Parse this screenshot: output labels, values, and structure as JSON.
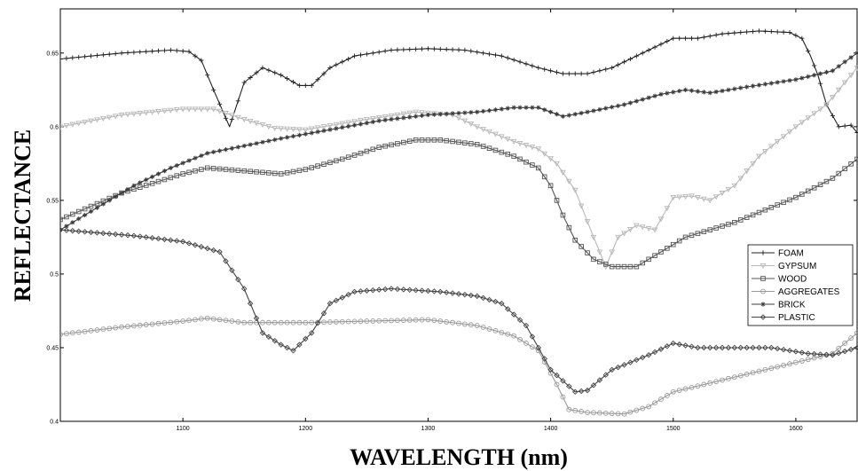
{
  "chart_data": {
    "type": "line",
    "xlabel": "WAVELENGTH (nm)",
    "ylabel": "REFLECTANCE",
    "xlim": [
      1000,
      1650
    ],
    "ylim": [
      0.4,
      0.68
    ],
    "xticks": [
      1100,
      1200,
      1300,
      1400,
      1500,
      1600
    ],
    "yticks": [
      0.4,
      0.45,
      0.5,
      0.55,
      0.6,
      0.65
    ],
    "ytick_labels": [
      "0.4",
      "0.45",
      "0.5",
      "0.55",
      "0.6",
      "0.65"
    ],
    "grid": false,
    "legend": "right",
    "series": [
      {
        "name": "FOAM",
        "color": "#222222",
        "marker": "plus",
        "points": [
          [
            1000,
            0.646
          ],
          [
            1050,
            0.65
          ],
          [
            1090,
            0.652
          ],
          [
            1105,
            0.651
          ],
          [
            1115,
            0.645
          ],
          [
            1125,
            0.625
          ],
          [
            1138,
            0.6
          ],
          [
            1150,
            0.63
          ],
          [
            1165,
            0.64
          ],
          [
            1180,
            0.635
          ],
          [
            1195,
            0.628
          ],
          [
            1205,
            0.628
          ],
          [
            1220,
            0.64
          ],
          [
            1240,
            0.648
          ],
          [
            1270,
            0.652
          ],
          [
            1300,
            0.653
          ],
          [
            1330,
            0.652
          ],
          [
            1360,
            0.648
          ],
          [
            1390,
            0.64
          ],
          [
            1410,
            0.636
          ],
          [
            1430,
            0.636
          ],
          [
            1450,
            0.64
          ],
          [
            1480,
            0.652
          ],
          [
            1500,
            0.66
          ],
          [
            1520,
            0.66
          ],
          [
            1540,
            0.663
          ],
          [
            1570,
            0.665
          ],
          [
            1595,
            0.664
          ],
          [
            1605,
            0.66
          ],
          [
            1612,
            0.648
          ],
          [
            1618,
            0.635
          ],
          [
            1625,
            0.615
          ],
          [
            1635,
            0.6
          ],
          [
            1645,
            0.601
          ],
          [
            1650,
            0.596
          ]
        ]
      },
      {
        "name": "GYPSUM",
        "color": "#b8b8b8",
        "marker": "triangle",
        "points": [
          [
            1000,
            0.6
          ],
          [
            1050,
            0.608
          ],
          [
            1100,
            0.612
          ],
          [
            1125,
            0.612
          ],
          [
            1150,
            0.605
          ],
          [
            1175,
            0.599
          ],
          [
            1200,
            0.598
          ],
          [
            1250,
            0.605
          ],
          [
            1290,
            0.61
          ],
          [
            1320,
            0.608
          ],
          [
            1340,
            0.6
          ],
          [
            1370,
            0.59
          ],
          [
            1390,
            0.585
          ],
          [
            1405,
            0.575
          ],
          [
            1420,
            0.557
          ],
          [
            1435,
            0.525
          ],
          [
            1445,
            0.505
          ],
          [
            1455,
            0.525
          ],
          [
            1470,
            0.533
          ],
          [
            1485,
            0.53
          ],
          [
            1500,
            0.552
          ],
          [
            1515,
            0.553
          ],
          [
            1530,
            0.55
          ],
          [
            1550,
            0.56
          ],
          [
            1570,
            0.58
          ],
          [
            1600,
            0.6
          ],
          [
            1625,
            0.615
          ],
          [
            1650,
            0.64
          ]
        ]
      },
      {
        "name": "WOOD",
        "color": "#555555",
        "marker": "square",
        "points": [
          [
            1000,
            0.537
          ],
          [
            1050,
            0.555
          ],
          [
            1100,
            0.568
          ],
          [
            1120,
            0.572
          ],
          [
            1150,
            0.57
          ],
          [
            1180,
            0.568
          ],
          [
            1200,
            0.571
          ],
          [
            1230,
            0.578
          ],
          [
            1260,
            0.586
          ],
          [
            1290,
            0.591
          ],
          [
            1310,
            0.591
          ],
          [
            1340,
            0.588
          ],
          [
            1370,
            0.58
          ],
          [
            1390,
            0.572
          ],
          [
            1400,
            0.56
          ],
          [
            1410,
            0.54
          ],
          [
            1420,
            0.523
          ],
          [
            1435,
            0.51
          ],
          [
            1450,
            0.505
          ],
          [
            1470,
            0.505
          ],
          [
            1490,
            0.515
          ],
          [
            1510,
            0.525
          ],
          [
            1550,
            0.535
          ],
          [
            1600,
            0.552
          ],
          [
            1630,
            0.565
          ],
          [
            1650,
            0.578
          ]
        ]
      },
      {
        "name": "AGGREGATES",
        "color": "#999999",
        "marker": "circle",
        "points": [
          [
            1000,
            0.459
          ],
          [
            1050,
            0.464
          ],
          [
            1100,
            0.468
          ],
          [
            1120,
            0.47
          ],
          [
            1150,
            0.467
          ],
          [
            1200,
            0.467
          ],
          [
            1250,
            0.468
          ],
          [
            1300,
            0.469
          ],
          [
            1340,
            0.465
          ],
          [
            1370,
            0.458
          ],
          [
            1390,
            0.448
          ],
          [
            1405,
            0.425
          ],
          [
            1415,
            0.408
          ],
          [
            1430,
            0.406
          ],
          [
            1460,
            0.405
          ],
          [
            1480,
            0.41
          ],
          [
            1500,
            0.42
          ],
          [
            1550,
            0.43
          ],
          [
            1600,
            0.44
          ],
          [
            1630,
            0.446
          ],
          [
            1650,
            0.46
          ]
        ]
      },
      {
        "name": "BRICK",
        "color": "#3a3a3a",
        "marker": "star",
        "points": [
          [
            1000,
            0.53
          ],
          [
            1030,
            0.545
          ],
          [
            1060,
            0.56
          ],
          [
            1090,
            0.572
          ],
          [
            1120,
            0.582
          ],
          [
            1150,
            0.587
          ],
          [
            1180,
            0.592
          ],
          [
            1220,
            0.598
          ],
          [
            1260,
            0.604
          ],
          [
            1300,
            0.608
          ],
          [
            1340,
            0.61
          ],
          [
            1370,
            0.613
          ],
          [
            1390,
            0.613
          ],
          [
            1410,
            0.607
          ],
          [
            1430,
            0.61
          ],
          [
            1460,
            0.615
          ],
          [
            1490,
            0.622
          ],
          [
            1510,
            0.625
          ],
          [
            1530,
            0.623
          ],
          [
            1560,
            0.627
          ],
          [
            1600,
            0.632
          ],
          [
            1630,
            0.638
          ],
          [
            1650,
            0.65
          ]
        ]
      },
      {
        "name": "PLASTIC",
        "color": "#444444",
        "marker": "diamond",
        "points": [
          [
            1000,
            0.53
          ],
          [
            1030,
            0.528
          ],
          [
            1060,
            0.526
          ],
          [
            1100,
            0.522
          ],
          [
            1130,
            0.515
          ],
          [
            1150,
            0.49
          ],
          [
            1165,
            0.46
          ],
          [
            1180,
            0.452
          ],
          [
            1190,
            0.448
          ],
          [
            1205,
            0.46
          ],
          [
            1220,
            0.48
          ],
          [
            1240,
            0.488
          ],
          [
            1270,
            0.49
          ],
          [
            1310,
            0.488
          ],
          [
            1340,
            0.485
          ],
          [
            1360,
            0.48
          ],
          [
            1380,
            0.465
          ],
          [
            1400,
            0.435
          ],
          [
            1420,
            0.42
          ],
          [
            1430,
            0.421
          ],
          [
            1450,
            0.435
          ],
          [
            1480,
            0.445
          ],
          [
            1500,
            0.453
          ],
          [
            1520,
            0.45
          ],
          [
            1550,
            0.45
          ],
          [
            1580,
            0.45
          ],
          [
            1610,
            0.446
          ],
          [
            1630,
            0.445
          ],
          [
            1650,
            0.45
          ]
        ]
      }
    ]
  }
}
